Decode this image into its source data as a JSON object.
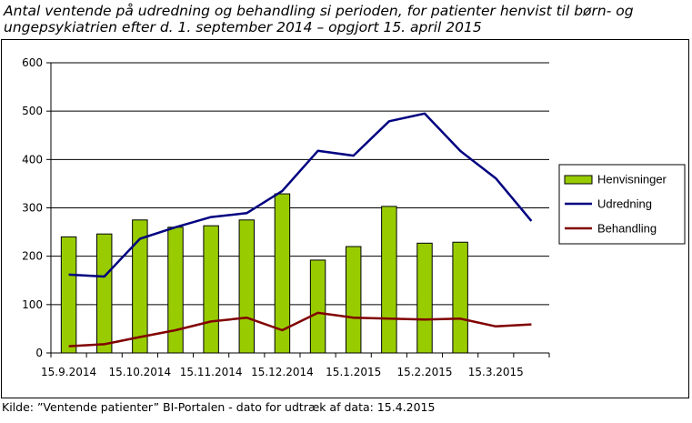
{
  "title_lines": [
    "Antal ventende på udredning og behandling si perioden, for patienter henvist til børn- og",
    "ungepsykiatrien efter d. 1. september 2014 – opgjort 15. april 2015"
  ],
  "source": "Kilde: ”Ventende patienter” BI-Portalen - dato for udtræk af data: 15.4.2015",
  "chart_data": {
    "type": "bar+line",
    "title": "Antal ventende på udredning og behandling si perioden, for patienter henvist til børn- og ungepsykiatrien efter d. 1. september 2014 – opgjort 15. april 2015",
    "x_tick_labels": [
      "15.9.2014",
      "15.10.2014",
      "15.11.2014",
      "15.12.2014",
      "15.1.2015",
      "15.2.2015",
      "15.3.2015"
    ],
    "x_points": 14,
    "ylim": [
      0,
      600
    ],
    "yticks": [
      0,
      100,
      200,
      300,
      400,
      500,
      600
    ],
    "grid": "horizontal",
    "legend_position": "right",
    "series": [
      {
        "name": "Henvisninger",
        "kind": "bar",
        "color": "#99cc00",
        "values": [
          240,
          246,
          275,
          260,
          263,
          275,
          329,
          192,
          220,
          303,
          227,
          229,
          null,
          null
        ]
      },
      {
        "name": "Udredning",
        "kind": "line",
        "color": "#000080",
        "values": [
          162,
          158,
          236,
          260,
          281,
          289,
          335,
          418,
          408,
          479,
          495,
          418,
          361,
          273
        ]
      },
      {
        "name": "Behandling",
        "kind": "line",
        "color": "#800000",
        "values": [
          14,
          18,
          33,
          47,
          65,
          73,
          47,
          83,
          73,
          71,
          69,
          71,
          55,
          59
        ]
      }
    ]
  }
}
